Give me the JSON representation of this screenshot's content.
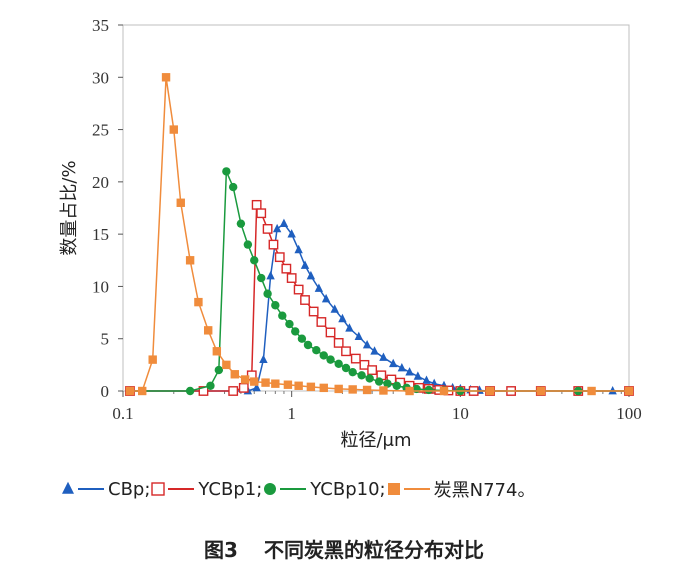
{
  "chart_data": {
    "type": "scatter",
    "xlabel": "粒径/μm",
    "ylabel": "数量占比/%",
    "xscale": "log",
    "xlim": [
      0.1,
      100
    ],
    "ylim": [
      0,
      35
    ],
    "x_ticks": [
      "0.1",
      "1",
      "10",
      "100"
    ],
    "y_ticks": [
      "0",
      "5",
      "10",
      "15",
      "20",
      "25",
      "30",
      "35"
    ],
    "grid": false,
    "legend_position": "bottom",
    "series": [
      {
        "name": "CBp",
        "color": "#1f5fbf",
        "marker": "triangle",
        "x": [
          0.11,
          0.3,
          0.55,
          0.62,
          0.68,
          0.75,
          0.82,
          0.9,
          1.0,
          1.1,
          1.2,
          1.3,
          1.45,
          1.6,
          1.8,
          2.0,
          2.2,
          2.5,
          2.8,
          3.1,
          3.5,
          4.0,
          4.5,
          5.0,
          5.6,
          6.3,
          7.0,
          8.0,
          9.0,
          10.0,
          11.5,
          13.0,
          15.0,
          20.0,
          30.0,
          50.0,
          80.0,
          100.0
        ],
        "y": [
          0,
          0,
          0,
          0.3,
          3.0,
          11.0,
          15.5,
          16.0,
          15.0,
          13.5,
          12.0,
          11.0,
          9.8,
          8.8,
          7.8,
          6.9,
          6.0,
          5.2,
          4.4,
          3.8,
          3.2,
          2.6,
          2.2,
          1.8,
          1.4,
          1.0,
          0.7,
          0.5,
          0.3,
          0.2,
          0.1,
          0.05,
          0,
          0,
          0,
          0,
          0,
          0
        ]
      },
      {
        "name": "YCBp1",
        "color": "#d62828",
        "marker": "square-open",
        "x": [
          0.11,
          0.3,
          0.45,
          0.52,
          0.58,
          0.62,
          0.66,
          0.72,
          0.78,
          0.85,
          0.93,
          1.0,
          1.1,
          1.2,
          1.35,
          1.5,
          1.7,
          1.9,
          2.1,
          2.4,
          2.7,
          3.0,
          3.4,
          3.9,
          4.4,
          5.0,
          5.7,
          6.5,
          7.5,
          8.5,
          10.0,
          12.0,
          15.0,
          20.0,
          30.0,
          50.0,
          100.0
        ],
        "y": [
          0,
          0,
          0,
          0.3,
          1.5,
          17.8,
          17.0,
          15.5,
          14.0,
          12.8,
          11.7,
          10.8,
          9.7,
          8.7,
          7.6,
          6.6,
          5.6,
          4.6,
          3.8,
          3.1,
          2.5,
          2.0,
          1.5,
          1.1,
          0.8,
          0.5,
          0.3,
          0.2,
          0.1,
          0.05,
          0,
          0,
          0,
          0,
          0,
          0,
          0
        ]
      },
      {
        "name": "YCBp10",
        "color": "#1a9a3e",
        "marker": "circle",
        "x": [
          0.11,
          0.25,
          0.33,
          0.37,
          0.41,
          0.45,
          0.5,
          0.55,
          0.6,
          0.66,
          0.72,
          0.8,
          0.88,
          0.97,
          1.05,
          1.15,
          1.25,
          1.4,
          1.55,
          1.7,
          1.9,
          2.1,
          2.3,
          2.6,
          2.9,
          3.3,
          3.7,
          4.2,
          4.8,
          5.5,
          6.5,
          8.0,
          10.0,
          15.0,
          30.0,
          50.0,
          100.0
        ],
        "y": [
          0,
          0,
          0.5,
          2.0,
          21.0,
          19.5,
          16.0,
          14.0,
          12.5,
          10.8,
          9.3,
          8.2,
          7.2,
          6.4,
          5.7,
          5.0,
          4.4,
          3.9,
          3.4,
          3.0,
          2.6,
          2.2,
          1.8,
          1.5,
          1.2,
          0.9,
          0.7,
          0.5,
          0.3,
          0.2,
          0.1,
          0.05,
          0,
          0,
          0,
          0,
          0
        ]
      },
      {
        "name": "炭黑N774",
        "color": "#f08c3c",
        "marker": "square",
        "x": [
          0.11,
          0.13,
          0.15,
          0.18,
          0.2,
          0.22,
          0.25,
          0.28,
          0.32,
          0.36,
          0.41,
          0.46,
          0.53,
          0.6,
          0.7,
          0.8,
          0.95,
          1.1,
          1.3,
          1.55,
          1.9,
          2.3,
          2.8,
          3.5,
          5.0,
          8.0,
          15.0,
          30.0,
          60.0,
          100.0
        ],
        "y": [
          0,
          0,
          3.0,
          30.0,
          25.0,
          18.0,
          12.5,
          8.5,
          5.8,
          3.8,
          2.5,
          1.6,
          1.1,
          0.9,
          0.8,
          0.7,
          0.6,
          0.5,
          0.4,
          0.3,
          0.2,
          0.15,
          0.1,
          0.05,
          0,
          0,
          0,
          0,
          0,
          0
        ]
      }
    ]
  },
  "legend": {
    "items": [
      {
        "label": "CBp;"
      },
      {
        "label": "YCBp1;"
      },
      {
        "label": "YCBp10;"
      },
      {
        "label": "炭黑N774。"
      }
    ]
  },
  "caption": {
    "number": "图3",
    "text": "不同炭黑的粒径分布对比"
  }
}
